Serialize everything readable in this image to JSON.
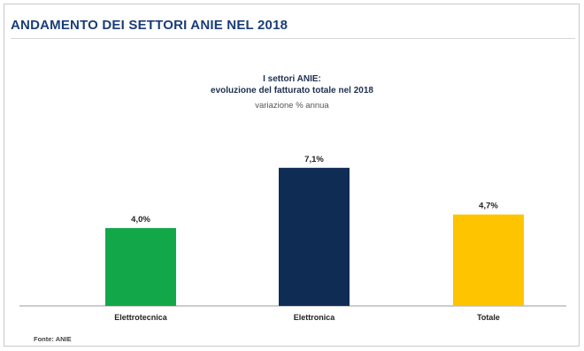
{
  "page": {
    "title": "ANDAMENTO DEI SETTORI ANIE NEL 2018",
    "source": "Fonte: ANIE"
  },
  "chart_data": {
    "type": "bar",
    "title_line1": "I settori ANIE:",
    "title_line2": "evoluzione del fatturato totale nel 2018",
    "subtitle": "variazione % annua",
    "categories": [
      "Elettrotecnica",
      "Elettronica",
      "Totale"
    ],
    "values": [
      4.0,
      7.1,
      4.7
    ],
    "value_labels": [
      "4,0%",
      "7,1%",
      "4,7%"
    ],
    "colors": [
      "#12a84a",
      "#0f2c55",
      "#ffc400"
    ],
    "ylim": [
      0,
      8
    ],
    "grid": false,
    "legend": "none"
  },
  "colors": {
    "title": "#1a3d7a",
    "axis": "#9a9a9a"
  }
}
